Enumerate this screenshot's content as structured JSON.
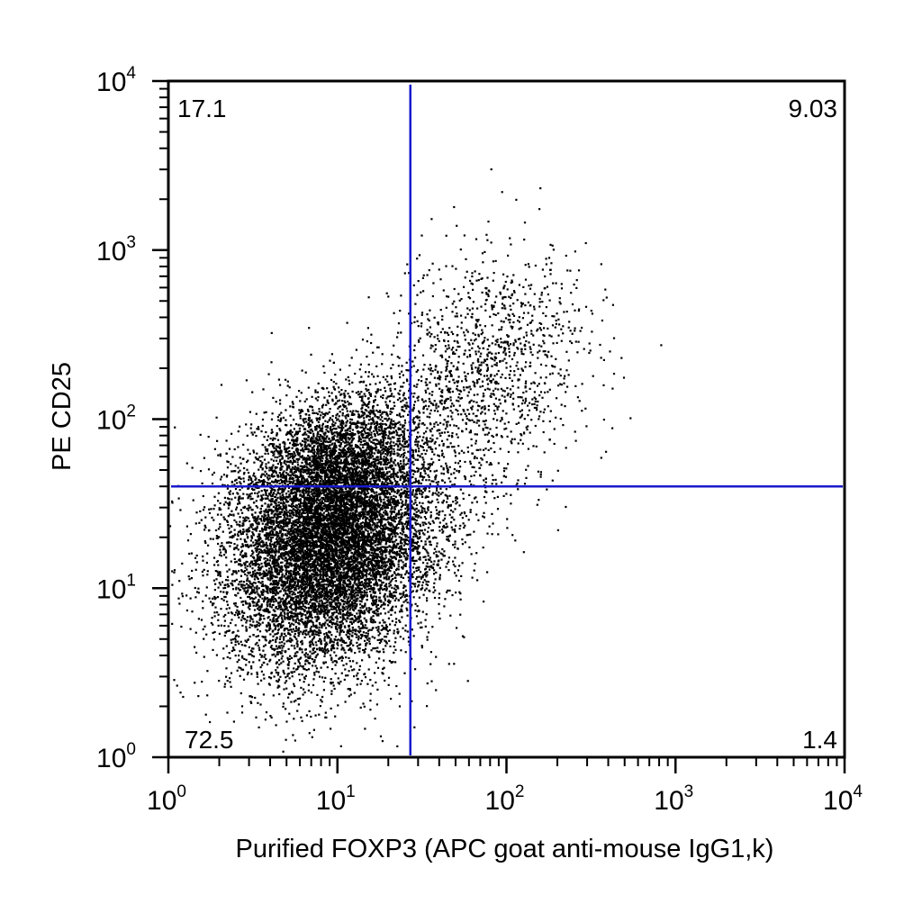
{
  "chart_data": {
    "type": "scatter",
    "title": "",
    "xlabel": "Purified FOXP3 (APC goat anti-mouse IgG1,k)",
    "ylabel": "PE CD25",
    "x_scale": "log",
    "y_scale": "log",
    "xlim": [
      1,
      10000
    ],
    "ylim": [
      1,
      10000
    ],
    "x_ticks": [
      {
        "value": 1,
        "base": "10",
        "exp": "0"
      },
      {
        "value": 10,
        "base": "10",
        "exp": "1"
      },
      {
        "value": 100,
        "base": "10",
        "exp": "2"
      },
      {
        "value": 1000,
        "base": "10",
        "exp": "3"
      },
      {
        "value": 10000,
        "base": "10",
        "exp": "4"
      }
    ],
    "y_ticks": [
      {
        "value": 1,
        "base": "10",
        "exp": "0"
      },
      {
        "value": 10,
        "base": "10",
        "exp": "1"
      },
      {
        "value": 100,
        "base": "10",
        "exp": "2"
      },
      {
        "value": 1000,
        "base": "10",
        "exp": "3"
      },
      {
        "value": 10000,
        "base": "10",
        "exp": "4"
      }
    ],
    "grid": false,
    "gates": {
      "x_threshold": 27,
      "y_threshold": 40,
      "color": "#1a1acc"
    },
    "quadrants": {
      "upper_left": "17.1",
      "upper_right": "9.03",
      "lower_left": "72.5",
      "lower_right": "1.4"
    },
    "populations": [
      {
        "name_hidden": true,
        "center": [
          9,
          18
        ],
        "spread_log": [
          0.3,
          0.35
        ],
        "relative_density": 0.72,
        "quadrant": "lower_left"
      },
      {
        "center": [
          10,
          55
        ],
        "spread_log": [
          0.28,
          0.22
        ],
        "relative_density": 0.17,
        "quadrant": "upper_left"
      },
      {
        "center": [
          80,
          200
        ],
        "spread_log": [
          0.3,
          0.35
        ],
        "relative_density": 0.09,
        "quadrant": "upper_right"
      },
      {
        "center": [
          40,
          25
        ],
        "spread_log": [
          0.25,
          0.2
        ],
        "relative_density": 0.014,
        "quadrant": "lower_right"
      }
    ],
    "point_color": "#000000"
  }
}
